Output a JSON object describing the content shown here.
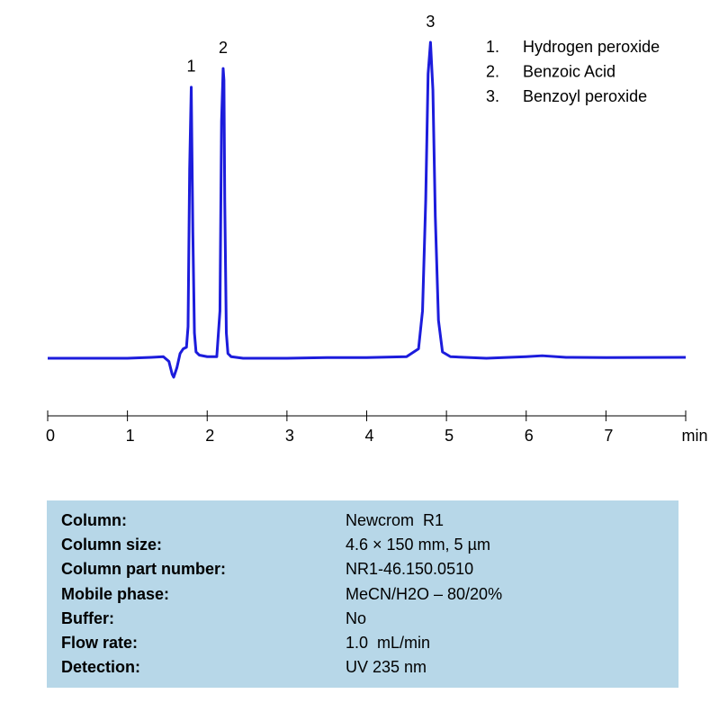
{
  "chart_data": {
    "type": "line",
    "color": "#1c1cdc",
    "x": [
      0,
      0.5,
      1,
      1.3,
      1.45,
      1.52,
      1.56,
      1.58,
      1.62,
      1.66,
      1.7,
      1.74,
      1.76,
      1.78,
      1.8,
      1.82,
      1.84,
      1.86,
      1.9,
      2.0,
      2.12,
      2.16,
      2.18,
      2.2,
      2.21,
      2.22,
      2.24,
      2.26,
      2.3,
      2.45,
      3,
      3.5,
      4,
      4.5,
      4.65,
      4.7,
      4.74,
      4.77,
      4.8,
      4.83,
      4.86,
      4.9,
      4.95,
      5.05,
      5.5,
      6,
      6.2,
      6.5,
      7,
      8
    ],
    "values": [
      0,
      0,
      0,
      0.3,
      0.5,
      -1,
      -5,
      -6,
      -3,
      1.5,
      3,
      3.5,
      10,
      60,
      85.8,
      40,
      8,
      2,
      1,
      0.5,
      0.5,
      15,
      75,
      91.7,
      88,
      50,
      8,
      1.5,
      0.5,
      0,
      0,
      0.2,
      0.2,
      0.5,
      3,
      15,
      50,
      90,
      100,
      85,
      45,
      12,
      2,
      0.5,
      0,
      0.5,
      0.8,
      0.3,
      0.2,
      0.3
    ],
    "xlim": [
      0,
      8
    ],
    "ylim": [
      -10,
      100
    ],
    "xticks": [
      0,
      1,
      2,
      3,
      4,
      5,
      6,
      7,
      {
        "value": 8,
        "label": "min"
      }
    ],
    "annotations": [
      {
        "text": "1",
        "x": 1.8,
        "y": 85.8
      },
      {
        "text": "2",
        "x": 2.2,
        "y": 91.7
      },
      {
        "text": "3",
        "x": 4.8,
        "y": 100
      }
    ],
    "legend": [
      {
        "number": "1.",
        "name": "Hydrogen peroxide"
      },
      {
        "number": "2.",
        "name": "Benzoic Acid"
      },
      {
        "number": "3.",
        "name": "Benzoyl peroxide"
      }
    ]
  },
  "table": {
    "rows": [
      [
        "Column:",
        "Newcrom  R1"
      ],
      [
        "Column size:",
        "4.6 × 150 mm, 5 µm"
      ],
      [
        "Column part number:",
        "NR1-46.150.0510"
      ],
      [
        "Mobile phase:",
        "MeCN/H2O – 80/20%"
      ],
      [
        "Buffer:",
        "No"
      ],
      [
        "Flow rate:",
        "1.0  mL/min"
      ],
      [
        "Detection:",
        "UV 235 nm"
      ]
    ]
  }
}
